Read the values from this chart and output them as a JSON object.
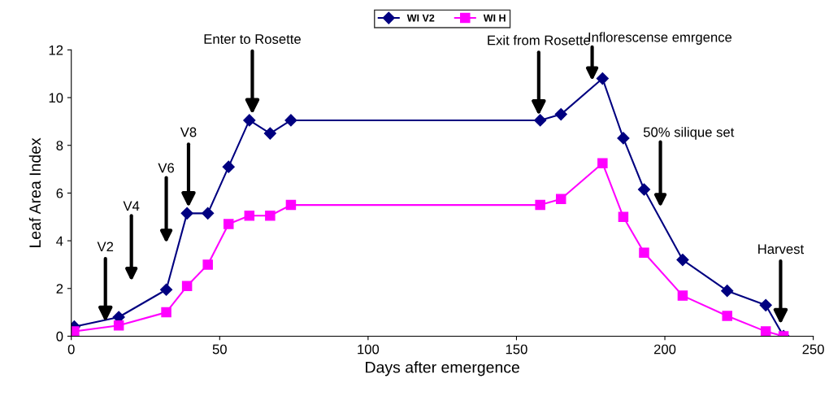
{
  "chart_data": {
    "type": "line",
    "xlabel": "Days after emergence",
    "ylabel": "Leaf Area Index",
    "x": [
      1,
      16,
      32,
      39,
      46,
      53,
      60,
      67,
      74,
      158,
      165,
      179,
      186,
      193,
      206,
      221,
      234,
      240
    ],
    "series": [
      {
        "name": "WI V2",
        "color": "#000080",
        "marker": "diamond",
        "values": [
          0.4,
          0.8,
          1.95,
          5.15,
          5.15,
          7.1,
          9.05,
          8.5,
          9.05,
          9.05,
          9.3,
          10.8,
          8.3,
          6.15,
          3.2,
          1.9,
          1.3,
          0
        ]
      },
      {
        "name": "WI H",
        "color": "#ff00ff",
        "marker": "square",
        "values": [
          0.2,
          0.45,
          1.0,
          2.1,
          3.0,
          4.7,
          5.05,
          5.05,
          5.5,
          5.5,
          5.75,
          7.25,
          5.0,
          3.5,
          1.7,
          0.85,
          0.2,
          0
        ]
      }
    ],
    "xlim": [
      0,
      250
    ],
    "xticks": [
      0,
      50,
      100,
      150,
      200,
      250
    ],
    "ylim": [
      0,
      12
    ],
    "yticks": [
      0,
      2,
      4,
      6,
      8,
      10,
      12
    ],
    "grid": false,
    "legend": "top",
    "line_style": "solid",
    "annotations": [
      {
        "text": "V2",
        "x": 11.5,
        "y": 0.6
      },
      "V4",
      "V6",
      {
        "text": "V8",
        "x": 39.5,
        "y": 5.4
      },
      {
        "text": "Enter to Rosette",
        "x": 61,
        "y": 9.3
      },
      {
        "text": "Exit from Rosette",
        "x": 157.5,
        "y": 9.25
      },
      "Inflorescense emrgence",
      "50% silique set",
      {
        "text": "Harvest",
        "x": 239,
        "y": 0.5
      }
    ]
  }
}
